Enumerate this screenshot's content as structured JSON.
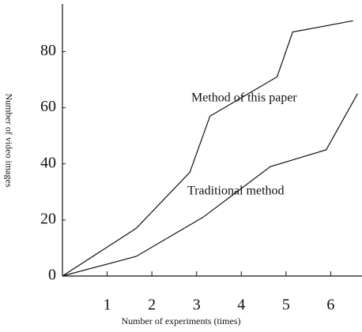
{
  "chart_data": {
    "type": "line",
    "x_label": "Number of experiments (times)",
    "y_label": "Number of video images",
    "annotations": [
      "Method of this paper",
      "Traditional method"
    ],
    "xlim": [
      0,
      6.7
    ],
    "ylim": [
      0,
      97
    ],
    "xticks": [
      1,
      2,
      3,
      4,
      5,
      6
    ],
    "yticks": [
      0,
      20,
      40,
      60,
      80
    ],
    "series": [
      {
        "name": "Method of this paper",
        "color": "#111111",
        "x": [
          0,
          1.65,
          2.85,
          3.3,
          4.8,
          5.15,
          6.5
        ],
        "values": [
          0,
          17,
          37,
          57,
          71,
          87,
          91
        ]
      },
      {
        "name": "Traditional method",
        "color": "#111111",
        "x": [
          0,
          1.65,
          3.15,
          4.65,
          5.9,
          6.6
        ],
        "values": [
          0,
          7,
          21,
          39,
          45,
          65
        ]
      }
    ]
  }
}
